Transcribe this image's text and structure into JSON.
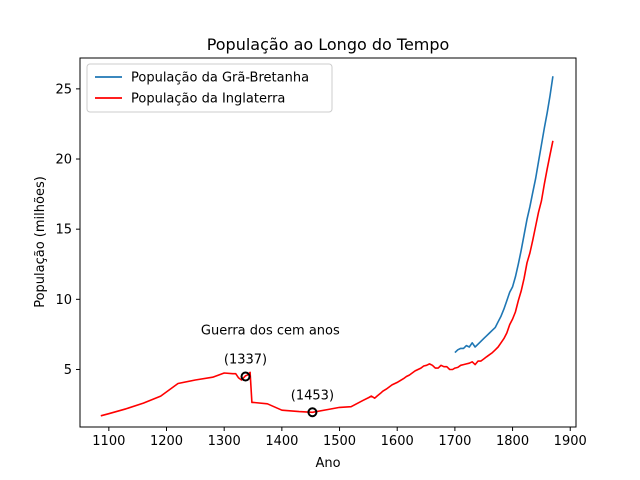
{
  "chart_data": {
    "type": "line",
    "title": "População ao Longo do Tempo",
    "xlabel": "Ano",
    "ylabel": "População (milhões)",
    "xlim": [
      1050,
      1910
    ],
    "ylim": [
      0.9,
      27.2
    ],
    "xticks": [
      1100,
      1200,
      1300,
      1400,
      1500,
      1600,
      1700,
      1800,
      1900
    ],
    "yticks": [
      5,
      10,
      15,
      20,
      25
    ],
    "grid": false,
    "legend": "top-left",
    "series": [
      {
        "name": "População da Grã-Bretanha",
        "color": "#1f77b4",
        "x": [
          1700,
          1705,
          1710,
          1715,
          1720,
          1725,
          1730,
          1735,
          1740,
          1745,
          1750,
          1755,
          1760,
          1765,
          1770,
          1775,
          1780,
          1785,
          1790,
          1795,
          1800,
          1805,
          1810,
          1815,
          1820,
          1825,
          1830,
          1835,
          1840,
          1845,
          1850,
          1855,
          1860,
          1865,
          1870
        ],
        "y": [
          6.2,
          6.4,
          6.5,
          6.5,
          6.7,
          6.6,
          6.9,
          6.6,
          6.8,
          7.0,
          7.2,
          7.4,
          7.6,
          7.8,
          8.0,
          8.4,
          8.8,
          9.3,
          9.9,
          10.5,
          10.9,
          11.6,
          12.5,
          13.5,
          14.6,
          15.7,
          16.6,
          17.6,
          18.6,
          19.8,
          21.0,
          22.2,
          23.3,
          24.5,
          25.9
        ]
      },
      {
        "name": "População da Inglaterra",
        "color": "#ff0000",
        "x": [
          1086,
          1100,
          1130,
          1160,
          1190,
          1220,
          1250,
          1280,
          1300,
          1315,
          1320,
          1325,
          1330,
          1337,
          1340,
          1345,
          1348,
          1350,
          1375,
          1400,
          1430,
          1453,
          1480,
          1500,
          1520,
          1541,
          1551,
          1555,
          1561,
          1565,
          1571,
          1575,
          1581,
          1591,
          1601,
          1611,
          1616,
          1621,
          1631,
          1641,
          1646,
          1651,
          1656,
          1661,
          1666,
          1671,
          1676,
          1681,
          1686,
          1691,
          1696,
          1700,
          1705,
          1710,
          1715,
          1720,
          1725,
          1730,
          1735,
          1740,
          1745,
          1750,
          1755,
          1760,
          1765,
          1770,
          1775,
          1780,
          1785,
          1790,
          1795,
          1800,
          1805,
          1810,
          1815,
          1820,
          1825,
          1830,
          1835,
          1840,
          1845,
          1850,
          1855,
          1860,
          1865,
          1870
        ],
        "y": [
          1.7,
          1.85,
          2.2,
          2.6,
          3.1,
          4.0,
          4.25,
          4.45,
          4.75,
          4.7,
          4.7,
          4.4,
          4.25,
          4.55,
          4.6,
          4.8,
          2.65,
          2.65,
          2.55,
          2.1,
          2.0,
          1.95,
          2.15,
          2.3,
          2.35,
          2.8,
          3.0,
          3.1,
          2.95,
          3.1,
          3.3,
          3.45,
          3.6,
          3.9,
          4.1,
          4.35,
          4.5,
          4.6,
          4.9,
          5.1,
          5.25,
          5.3,
          5.4,
          5.3,
          5.1,
          5.1,
          5.3,
          5.2,
          5.2,
          5.0,
          5.0,
          5.1,
          5.15,
          5.3,
          5.35,
          5.4,
          5.45,
          5.55,
          5.35,
          5.6,
          5.6,
          5.75,
          5.9,
          6.05,
          6.2,
          6.4,
          6.6,
          6.9,
          7.2,
          7.6,
          8.2,
          8.6,
          9.1,
          9.9,
          10.6,
          11.5,
          12.6,
          13.3,
          14.2,
          15.2,
          16.2,
          17.0,
          18.2,
          19.3,
          20.3,
          21.3
        ]
      }
    ],
    "markers": [
      {
        "x": 1337,
        "y": 4.5,
        "label": "(1337)"
      },
      {
        "x": 1453,
        "y": 1.95,
        "label": "(1453)"
      }
    ],
    "annotations": [
      {
        "x": 1380,
        "y": 7.5,
        "text": "Guerra dos cem anos"
      }
    ]
  }
}
